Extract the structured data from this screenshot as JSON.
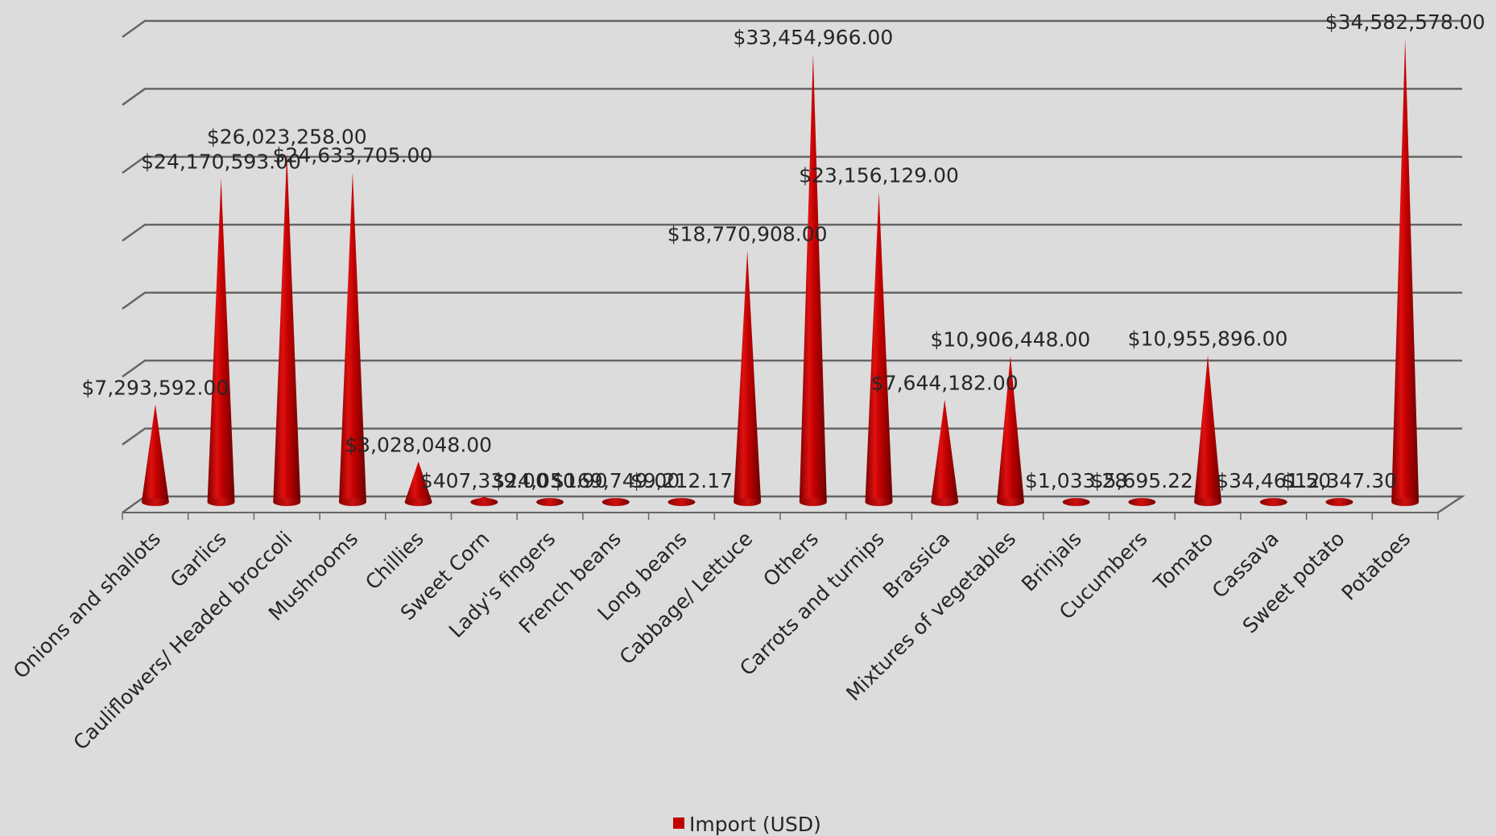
{
  "chart_data": {
    "type": "bar",
    "bar_shape": "cone",
    "categories": [
      "Onions and shallots",
      "Garlics",
      "Cauliflowers/ Headed broccoli",
      "Mushrooms",
      "Chillies",
      "Sweet Corn",
      "Lady's fingers",
      "French beans",
      "Long beans",
      "Cabbage/ Lettuce",
      "Others",
      "Carrots and turnips",
      "Brassica",
      "Mixtures of vegetables",
      "Brinjals",
      "Cucumbers",
      "Tomato",
      "Cassava",
      "Sweet potato",
      "Potatoes"
    ],
    "series": [
      {
        "name": "Import (USD)",
        "color": "#c00000",
        "values": [
          7293592.0,
          24170593.0,
          26023258.0,
          24633705.0,
          3028048.0,
          407339.0,
          24050.9,
          169749.0,
          9212.17,
          18770908.0,
          33454966.0,
          23156129.0,
          7644182.0,
          10906448.0,
          1033.28,
          5695.22,
          10955896.0,
          34461.5,
          12347.3,
          34582578.0
        ],
        "labels": [
          "$7,293,592.00",
          "$24,170,593.00",
          "$26,023,258.00",
          "$24,633,705.00",
          "$3,028,048.00",
          "$407,339.00",
          "$24,050.90",
          "$169,749.00",
          "$9,212.17",
          "$18,770,908.00",
          "$33,454,966.00",
          "$23,156,129.00",
          "$7,644,182.00",
          "$10,906,448.00",
          "$1,033.28",
          "$5,695.22",
          "$10,955,896.00",
          "$34,461.50",
          "$12,347.30",
          "$34,582,578.00"
        ]
      }
    ],
    "ylim": [
      0,
      35000000
    ],
    "y_grid_step": 5000000,
    "grid": true,
    "legend_position": "bottom",
    "colors": {
      "background": "#dcdcdc",
      "bar": "#c00000",
      "grid": "#666666",
      "text": "#262626"
    }
  }
}
